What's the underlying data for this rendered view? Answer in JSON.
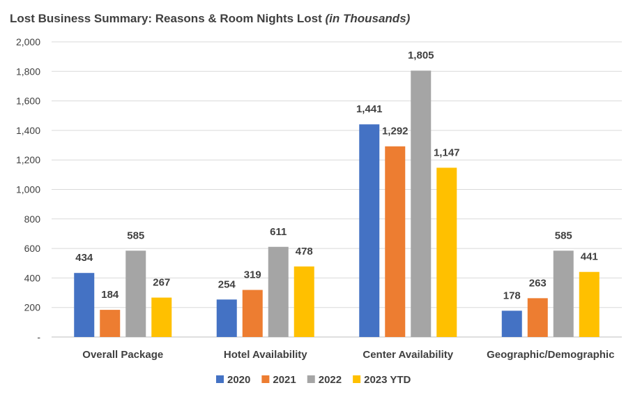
{
  "chart_data": {
    "type": "bar",
    "title": "Lost Business Summary: Reasons & Room Nights Lost",
    "title_suffix": "(in Thousands)",
    "categories": [
      "Overall Package",
      "Hotel Availability",
      "Center Availability",
      "Geographic/Demographic"
    ],
    "series": [
      {
        "name": "2020",
        "color": "#4472C4",
        "values": [
          434,
          254,
          1441,
          178
        ],
        "labels": [
          "434",
          "254",
          "1,441",
          "178"
        ]
      },
      {
        "name": "2021",
        "color": "#ED7D31",
        "values": [
          184,
          319,
          1292,
          263
        ],
        "labels": [
          "184",
          "319",
          "1,292",
          "263"
        ]
      },
      {
        "name": "2022",
        "color": "#A5A5A5",
        "values": [
          585,
          611,
          1805,
          585
        ],
        "labels": [
          "585",
          "611",
          "1,805",
          "585"
        ]
      },
      {
        "name": "2023 YTD",
        "color": "#FFC000",
        "values": [
          267,
          478,
          1147,
          441
        ],
        "labels": [
          "267",
          "478",
          "1,147",
          "441"
        ]
      }
    ],
    "ylim": [
      0,
      2000
    ],
    "yticks": [
      0,
      200,
      400,
      600,
      800,
      1000,
      1200,
      1400,
      1600,
      1800,
      2000
    ],
    "ytick_labels": [
      "-",
      "200",
      "400",
      "600",
      "800",
      "1,000",
      "1,200",
      "1,400",
      "1,600",
      "1,800",
      "2,000"
    ],
    "xlabel": "",
    "ylabel": "",
    "grid": true,
    "legend_position": "bottom"
  }
}
